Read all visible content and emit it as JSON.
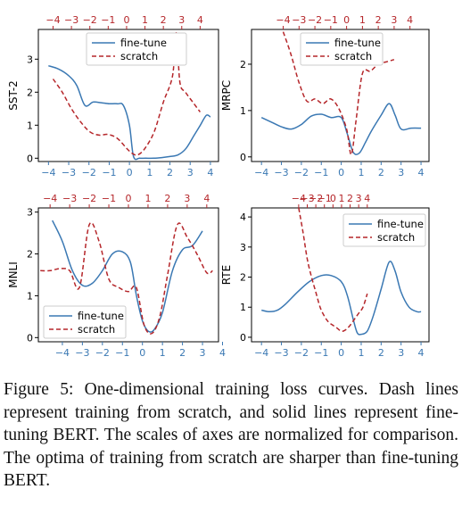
{
  "figure": {
    "colors": {
      "fine_tune": "#3a78b3",
      "scratch": "#b5262a",
      "bottom_axis": "#3a78b3",
      "top_axis": "#b5262a"
    }
  },
  "chart_data": [
    {
      "type": "line",
      "ylabel": "SST-2",
      "ylim": [
        -0.1,
        3.9
      ],
      "yticks": [
        0,
        1,
        2,
        3
      ],
      "xlim_bottom": [
        -4.5,
        4.4
      ],
      "xticks_bottom": [
        -4,
        -3,
        -2,
        -1,
        0,
        1,
        2,
        3,
        4
      ],
      "xlim_top": [
        -4.8,
        5.0
      ],
      "xticks_top": [
        -4,
        -3,
        -2,
        -1,
        0,
        1,
        2,
        3,
        4
      ],
      "legend": "top-center",
      "series": [
        {
          "name": "fine-tune",
          "axis": "bottom",
          "x": [
            -4.0,
            -3.5,
            -3.0,
            -2.6,
            -2.2,
            -1.8,
            -1.4,
            -1.0,
            -0.6,
            -0.3,
            0.0,
            0.2,
            0.5,
            0.8,
            1.2,
            1.6,
            2.0,
            2.4,
            2.8,
            3.2,
            3.5,
            3.8,
            4.0
          ],
          "y": [
            2.8,
            2.7,
            2.5,
            2.2,
            1.6,
            1.7,
            1.68,
            1.65,
            1.65,
            1.6,
            1.0,
            0.05,
            0.0,
            0.0,
            0.0,
            0.02,
            0.05,
            0.1,
            0.3,
            0.7,
            1.0,
            1.3,
            1.25
          ]
        },
        {
          "name": "scratch",
          "axis": "top",
          "x": [
            -4.0,
            -3.5,
            -3.0,
            -2.5,
            -2.0,
            -1.5,
            -1.0,
            -0.5,
            0.0,
            0.3,
            0.6,
            1.0,
            1.5,
            2.0,
            2.5,
            2.7,
            2.9,
            3.2,
            3.6,
            4.0
          ],
          "y": [
            2.4,
            2.0,
            1.5,
            1.1,
            0.8,
            0.7,
            0.72,
            0.6,
            0.3,
            0.15,
            0.1,
            0.3,
            0.8,
            1.7,
            2.5,
            3.8,
            2.3,
            2.0,
            1.7,
            1.4
          ]
        }
      ]
    },
    {
      "type": "line",
      "ylabel": "MRPC",
      "ylim": [
        -0.1,
        2.75
      ],
      "yticks": [
        0,
        1,
        2
      ],
      "xlim_bottom": [
        -4.5,
        4.4
      ],
      "xticks_bottom": [
        -4,
        -3,
        -2,
        -1,
        0,
        1,
        2,
        3,
        4
      ],
      "xlim_top": [
        -6.0,
        5.2
      ],
      "xticks_top": [
        -4,
        -3,
        -2,
        -1,
        0,
        1,
        2,
        3,
        4
      ],
      "xticklabels_top": [
        "−4",
        "−3",
        "−2",
        "−1",
        "0",
        "1",
        "2",
        "3",
        "4"
      ],
      "legend": "top-right",
      "series": [
        {
          "name": "fine-tune",
          "axis": "bottom",
          "x": [
            -4.0,
            -3.5,
            -3.0,
            -2.5,
            -2.0,
            -1.5,
            -1.0,
            -0.5,
            0.0,
            0.3,
            0.6,
            0.9,
            1.2,
            1.5,
            2.0,
            2.4,
            2.7,
            3.0,
            3.5,
            4.0
          ],
          "y": [
            0.85,
            0.75,
            0.65,
            0.6,
            0.7,
            0.88,
            0.92,
            0.85,
            0.85,
            0.5,
            0.1,
            0.08,
            0.3,
            0.55,
            0.9,
            1.15,
            0.9,
            0.6,
            0.62,
            0.62
          ]
        },
        {
          "name": "scratch",
          "axis": "top",
          "x": [
            -4.0,
            -3.5,
            -3.0,
            -2.5,
            -2.0,
            -1.5,
            -1.0,
            -0.5,
            0.0,
            0.3,
            0.6,
            1.0,
            1.5,
            2.0,
            2.5,
            3.0
          ],
          "y": [
            2.7,
            2.2,
            1.6,
            1.2,
            1.25,
            1.15,
            1.25,
            1.05,
            0.6,
            0.05,
            0.8,
            1.8,
            1.85,
            2.0,
            2.05,
            2.1
          ]
        }
      ]
    },
    {
      "type": "line",
      "ylabel": "MNLI",
      "ylim": [
        -0.1,
        3.1
      ],
      "yticks": [
        0,
        1,
        2,
        3
      ],
      "xlim_bottom": [
        -5.2,
        3.8
      ],
      "xticks_bottom": [
        -4,
        -3,
        -2,
        -1,
        0,
        1,
        2,
        3,
        4
      ],
      "xlim_top": [
        -4.6,
        4.6
      ],
      "xticks_top": [
        -4,
        -3,
        -2,
        -1,
        0,
        1,
        2,
        3,
        4
      ],
      "legend": "bottom-left",
      "series": [
        {
          "name": "fine-tune",
          "axis": "bottom",
          "x": [
            -4.5,
            -4.0,
            -3.5,
            -3.0,
            -2.5,
            -2.0,
            -1.5,
            -1.0,
            -0.6,
            -0.3,
            0.0,
            0.3,
            0.6,
            1.0,
            1.5,
            2.0,
            2.5,
            3.0
          ],
          "y": [
            2.8,
            2.3,
            1.6,
            1.25,
            1.3,
            1.6,
            2.0,
            2.05,
            1.8,
            1.0,
            0.4,
            0.15,
            0.2,
            0.6,
            1.6,
            2.1,
            2.2,
            2.55
          ]
        },
        {
          "name": "scratch",
          "axis": "top",
          "x": [
            -4.5,
            -4.0,
            -3.5,
            -3.0,
            -2.5,
            -2.0,
            -1.5,
            -1.0,
            -0.5,
            0.0,
            0.4,
            0.8,
            1.2,
            1.6,
            2.0,
            2.5,
            3.0,
            3.5,
            4.0,
            4.3
          ],
          "y": [
            1.6,
            1.6,
            1.65,
            1.6,
            1.2,
            2.7,
            2.3,
            1.4,
            1.2,
            1.1,
            1.2,
            0.3,
            0.1,
            0.5,
            1.5,
            2.7,
            2.4,
            2.0,
            1.55,
            1.6
          ]
        }
      ]
    },
    {
      "type": "line",
      "ylabel": "RTE",
      "ylim": [
        -0.15,
        4.3
      ],
      "yticks": [
        0,
        1,
        2,
        3,
        4
      ],
      "xlim_bottom": [
        -4.5,
        4.4
      ],
      "xticks_bottom": [
        -4,
        -3,
        -2,
        -1,
        0,
        1,
        2,
        3,
        4
      ],
      "xlim_top": [
        -9.5,
        11.2
      ],
      "xticks_top": [
        -4,
        -3,
        -2,
        -1,
        0,
        1,
        2,
        3,
        4
      ],
      "xticklabels_top": [
        "−4",
        "−3",
        "−2",
        "−1",
        "0",
        "1",
        "2",
        "3",
        "4"
      ],
      "legend": "top-right",
      "series": [
        {
          "name": "fine-tune",
          "axis": "bottom",
          "x": [
            -4.0,
            -3.6,
            -3.2,
            -2.8,
            -2.2,
            -1.6,
            -1.0,
            -0.5,
            0.0,
            0.3,
            0.6,
            0.8,
            1.0,
            1.3,
            1.6,
            2.0,
            2.4,
            2.7,
            3.0,
            3.4,
            3.8,
            4.0
          ],
          "y": [
            0.9,
            0.85,
            0.9,
            1.1,
            1.5,
            1.85,
            2.05,
            2.05,
            1.85,
            1.4,
            0.6,
            0.15,
            0.1,
            0.2,
            0.7,
            1.6,
            2.5,
            2.2,
            1.5,
            1.0,
            0.85,
            0.85
          ]
        },
        {
          "name": "scratch",
          "axis": "top",
          "x": [
            -4.0,
            -3.5,
            -3.0,
            -2.5,
            -2.0,
            -1.5,
            -1.0,
            -0.5,
            0.0,
            0.5,
            1.0,
            1.5,
            2.0,
            2.5,
            3.0,
            3.5,
            4.0
          ],
          "y": [
            4.3,
            3.5,
            2.6,
            2.0,
            1.5,
            1.0,
            0.7,
            0.5,
            0.4,
            0.3,
            0.2,
            0.25,
            0.4,
            0.6,
            0.8,
            1.0,
            1.45
          ]
        }
      ]
    }
  ],
  "caption": {
    "text": "Figure 5: One-dimensional training loss curves. Dash lines represent training from scratch, and solid lines represent fine-tuning BERT. The scales of axes are normalized for comparison. The optima of training from scratch are sharper than fine-tuning BERT."
  }
}
